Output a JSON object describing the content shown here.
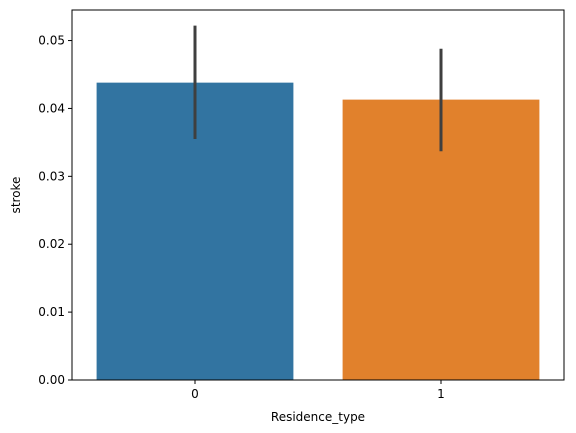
{
  "chart_data": {
    "type": "bar",
    "title": "",
    "xlabel": "Residence_type",
    "ylabel": "stroke",
    "categories": [
      "0",
      "1"
    ],
    "values": [
      0.0438,
      0.0413
    ],
    "error_bars": [
      {
        "low": 0.0355,
        "high": 0.0522
      },
      {
        "low": 0.0337,
        "high": 0.0488
      }
    ],
    "colors": [
      "#3274a1",
      "#e1812c"
    ],
    "error_color": "#3f3f3f",
    "ylim": [
      0,
      0.0545
    ],
    "yticks": [
      0.0,
      0.01,
      0.02,
      0.03,
      0.04,
      0.05
    ],
    "ytick_labels": [
      "0.00",
      "0.01",
      "0.02",
      "0.03",
      "0.04",
      "0.05"
    ],
    "grid": false,
    "legend": "none"
  }
}
